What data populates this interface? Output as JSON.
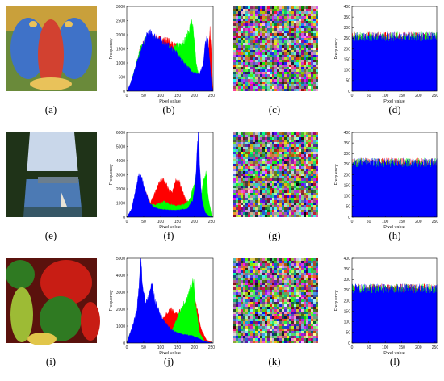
{
  "figure": {
    "captions": [
      "(a)",
      "(b)",
      "(c)",
      "(d)",
      "(e)",
      "(f)",
      "(g)",
      "(h)",
      "(i)",
      "(j)",
      "(k)",
      "(l)"
    ],
    "photos": [
      {
        "name": "baboon-image",
        "palette": [
          "#d24130",
          "#3f72c8",
          "#6a8a3a",
          "#c9a03b",
          "#e9c25a"
        ]
      },
      {
        "name": "lake-sailboat-image",
        "palette": [
          "#1f3318",
          "#4c7ab4",
          "#c9d7ea",
          "#6b7e8e",
          "#e9e3d6"
        ]
      },
      {
        "name": "peppers-image",
        "palette": [
          "#c81d14",
          "#2f7a22",
          "#9dbb35",
          "#e1c64a",
          "#5a120d"
        ]
      }
    ],
    "colors": {
      "red": "#ff0000",
      "green": "#00ff00",
      "blue": "#0000ff"
    }
  },
  "chart_data": [
    {
      "type": "area",
      "panel": "b",
      "xlabel": "Pixel value",
      "ylabel": "Frequency",
      "xlim": [
        0,
        255
      ],
      "ylim": [
        0,
        3000
      ],
      "xticks": [
        0,
        50,
        100,
        150,
        200,
        250
      ],
      "yticks": [
        0,
        500,
        1000,
        1500,
        2000,
        2500,
        3000
      ],
      "series": [
        {
          "color": "red",
          "points": [
            [
              0,
              0
            ],
            [
              8,
              100
            ],
            [
              20,
              500
            ],
            [
              40,
              1500
            ],
            [
              60,
              1950
            ],
            [
              80,
              1900
            ],
            [
              100,
              1850
            ],
            [
              120,
              1800
            ],
            [
              140,
              1650
            ],
            [
              160,
              1450
            ],
            [
              180,
              1100
            ],
            [
              200,
              800
            ],
            [
              215,
              600
            ],
            [
              225,
              550
            ],
            [
              235,
              900
            ],
            [
              242,
              1600
            ],
            [
              246,
              2150
            ],
            [
              250,
              1500
            ],
            [
              253,
              300
            ],
            [
              255,
              0
            ]
          ]
        },
        {
          "color": "green",
          "points": [
            [
              0,
              0
            ],
            [
              8,
              150
            ],
            [
              20,
              600
            ],
            [
              40,
              1500
            ],
            [
              60,
              1950
            ],
            [
              80,
              1850
            ],
            [
              100,
              1650
            ],
            [
              120,
              1500
            ],
            [
              140,
              1550
            ],
            [
              160,
              1700
            ],
            [
              175,
              1850
            ],
            [
              185,
              2200
            ],
            [
              192,
              2550
            ],
            [
              197,
              2050
            ],
            [
              205,
              1000
            ],
            [
              215,
              400
            ],
            [
              230,
              100
            ],
            [
              255,
              0
            ]
          ]
        },
        {
          "color": "blue",
          "points": [
            [
              0,
              0
            ],
            [
              10,
              250
            ],
            [
              25,
              800
            ],
            [
              40,
              1400
            ],
            [
              55,
              1850
            ],
            [
              65,
              2100
            ],
            [
              75,
              2000
            ],
            [
              90,
              1900
            ],
            [
              105,
              1750
            ],
            [
              120,
              1650
            ],
            [
              140,
              1450
            ],
            [
              160,
              1150
            ],
            [
              180,
              850
            ],
            [
              200,
              650
            ],
            [
              215,
              600
            ],
            [
              225,
              900
            ],
            [
              232,
              1700
            ],
            [
              238,
              2000
            ],
            [
              244,
              1200
            ],
            [
              250,
              300
            ],
            [
              255,
              0
            ]
          ]
        }
      ]
    },
    {
      "type": "bar",
      "panel": "d",
      "xlabel": "Pixel value",
      "ylabel": "Frequency",
      "xlim": [
        0,
        255
      ],
      "ylim": [
        0,
        400
      ],
      "xticks": [
        0,
        50,
        100,
        150,
        200,
        250
      ],
      "yticks": [
        0,
        50,
        100,
        150,
        200,
        250,
        300,
        350,
        400
      ],
      "level": 258,
      "jitter": 22
    },
    {
      "type": "area",
      "panel": "f",
      "xlabel": "Pixel value",
      "ylabel": "Frequency",
      "xlim": [
        0,
        255
      ],
      "ylim": [
        0,
        6000
      ],
      "xticks": [
        0,
        50,
        100,
        150,
        200,
        250
      ],
      "yticks": [
        0,
        1000,
        2000,
        3000,
        4000,
        5000,
        6000
      ],
      "series": [
        {
          "color": "red",
          "points": [
            [
              0,
              0
            ],
            [
              15,
              200
            ],
            [
              30,
              1000
            ],
            [
              45,
              2200
            ],
            [
              55,
              1800
            ],
            [
              70,
              1000
            ],
            [
              85,
              1800
            ],
            [
              100,
              2700
            ],
            [
              115,
              2500
            ],
            [
              125,
              1800
            ],
            [
              135,
              1800
            ],
            [
              145,
              2600
            ],
            [
              155,
              2500
            ],
            [
              170,
              1500
            ],
            [
              190,
              700
            ],
            [
              210,
              300
            ],
            [
              230,
              100
            ],
            [
              255,
              0
            ]
          ]
        },
        {
          "color": "green",
          "points": [
            [
              0,
              0
            ],
            [
              20,
              600
            ],
            [
              40,
              2200
            ],
            [
              55,
              1700
            ],
            [
              70,
              900
            ],
            [
              90,
              900
            ],
            [
              110,
              1100
            ],
            [
              130,
              900
            ],
            [
              150,
              800
            ],
            [
              170,
              900
            ],
            [
              185,
              1200
            ],
            [
              195,
              2000
            ],
            [
              205,
              3000
            ],
            [
              212,
              2400
            ],
            [
              220,
              1500
            ],
            [
              228,
              2800
            ],
            [
              235,
              3200
            ],
            [
              240,
              1500
            ],
            [
              250,
              200
            ],
            [
              255,
              0
            ]
          ]
        },
        {
          "color": "blue",
          "points": [
            [
              0,
              0
            ],
            [
              15,
              600
            ],
            [
              25,
              1800
            ],
            [
              35,
              3000
            ],
            [
              45,
              2800
            ],
            [
              55,
              1800
            ],
            [
              70,
              900
            ],
            [
              90,
              600
            ],
            [
              120,
              500
            ],
            [
              150,
              500
            ],
            [
              180,
              600
            ],
            [
              195,
              1200
            ],
            [
              203,
              2500
            ],
            [
              208,
              4800
            ],
            [
              212,
              6300
            ],
            [
              216,
              3200
            ],
            [
              222,
              1200
            ],
            [
              232,
              300
            ],
            [
              245,
              50
            ],
            [
              255,
              0
            ]
          ]
        }
      ]
    },
    {
      "type": "bar",
      "panel": "h",
      "xlabel": "Pixel value",
      "ylabel": "Frequency",
      "xlim": [
        0,
        255
      ],
      "ylim": [
        0,
        400
      ],
      "xticks": [
        0,
        50,
        100,
        150,
        200,
        250
      ],
      "yticks": [
        0,
        50,
        100,
        150,
        200,
        250,
        300,
        350,
        400
      ],
      "level": 258,
      "jitter": 22
    },
    {
      "type": "area",
      "panel": "j",
      "xlabel": "Pixel value",
      "ylabel": "Frequency",
      "xlim": [
        0,
        255
      ],
      "ylim": [
        0,
        5000
      ],
      "xticks": [
        0,
        50,
        100,
        150,
        200,
        250
      ],
      "yticks": [
        0,
        1000,
        2000,
        3000,
        4000,
        5000
      ],
      "series": [
        {
          "color": "red",
          "points": [
            [
              0,
              0
            ],
            [
              10,
              600
            ],
            [
              25,
              1200
            ],
            [
              40,
              1200
            ],
            [
              60,
              1500
            ],
            [
              80,
              1300
            ],
            [
              100,
              1200
            ],
            [
              115,
              1700
            ],
            [
              130,
              2000
            ],
            [
              145,
              1800
            ],
            [
              160,
              1900
            ],
            [
              175,
              2200
            ],
            [
              190,
              2400
            ],
            [
              200,
              2600
            ],
            [
              210,
              1800
            ],
            [
              220,
              800
            ],
            [
              235,
              200
            ],
            [
              255,
              0
            ]
          ]
        },
        {
          "color": "green",
          "points": [
            [
              0,
              0
            ],
            [
              10,
              600
            ],
            [
              30,
              1200
            ],
            [
              50,
              1300
            ],
            [
              70,
              1300
            ],
            [
              90,
              1400
            ],
            [
              110,
              900
            ],
            [
              130,
              600
            ],
            [
              150,
              1500
            ],
            [
              165,
              2200
            ],
            [
              180,
              2800
            ],
            [
              190,
              3400
            ],
            [
              198,
              3700
            ],
            [
              205,
              2000
            ],
            [
              215,
              600
            ],
            [
              230,
              100
            ],
            [
              255,
              0
            ]
          ]
        },
        {
          "color": "blue",
          "points": [
            [
              0,
              0
            ],
            [
              8,
              500
            ],
            [
              20,
              1200
            ],
            [
              30,
              2000
            ],
            [
              38,
              3800
            ],
            [
              42,
              5200
            ],
            [
              46,
              3500
            ],
            [
              55,
              2400
            ],
            [
              65,
              2800
            ],
            [
              75,
              3600
            ],
            [
              82,
              2600
            ],
            [
              95,
              1900
            ],
            [
              110,
              1300
            ],
            [
              130,
              800
            ],
            [
              150,
              600
            ],
            [
              170,
              500
            ],
            [
              190,
              450
            ],
            [
              210,
              300
            ],
            [
              230,
              100
            ],
            [
              255,
              0
            ]
          ]
        }
      ]
    },
    {
      "type": "bar",
      "panel": "l",
      "xlabel": "Pixel value",
      "ylabel": "Frequency",
      "xlim": [
        0,
        255
      ],
      "ylim": [
        0,
        400
      ],
      "xticks": [
        0,
        50,
        100,
        150,
        200,
        250
      ],
      "yticks": [
        0,
        50,
        100,
        150,
        200,
        250,
        300,
        350,
        400
      ],
      "level": 258,
      "jitter": 22
    }
  ]
}
